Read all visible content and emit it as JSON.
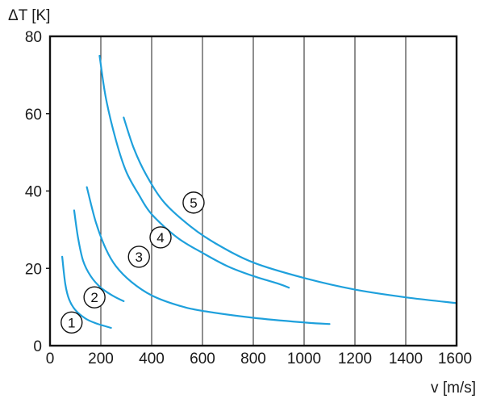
{
  "chart_data": {
    "type": "line",
    "title": "",
    "xlabel": "v [m/s]",
    "ylabel": "ΔT [K]",
    "xlim": [
      0,
      1600
    ],
    "ylim": [
      0,
      80
    ],
    "x_ticks": [
      0,
      200,
      400,
      600,
      800,
      1000,
      1200,
      1400,
      1600
    ],
    "y_ticks": [
      0,
      20,
      40,
      60,
      80
    ],
    "grid": "vertical lines only",
    "legend": "none",
    "colors": {
      "curve": "#1ea0dc",
      "grid": "#333333",
      "frame": "#111111"
    },
    "series": [
      {
        "label": "1",
        "points": [
          [
            48,
            23
          ],
          [
            60,
            16
          ],
          [
            75,
            12
          ],
          [
            100,
            9.2
          ],
          [
            140,
            7
          ],
          [
            180,
            5.8
          ],
          [
            240,
            4.6
          ]
        ]
      },
      {
        "label": "2",
        "points": [
          [
            95,
            35
          ],
          [
            110,
            28
          ],
          [
            130,
            22
          ],
          [
            160,
            18
          ],
          [
            200,
            15
          ],
          [
            250,
            12.8
          ],
          [
            290,
            11.5
          ]
        ]
      },
      {
        "label": "3",
        "points": [
          [
            145,
            41
          ],
          [
            180,
            32
          ],
          [
            220,
            25
          ],
          [
            260,
            20.5
          ],
          [
            320,
            16.5
          ],
          [
            400,
            13
          ],
          [
            500,
            10.5
          ],
          [
            600,
            9
          ],
          [
            800,
            7.2
          ],
          [
            1000,
            6
          ],
          [
            1100,
            5.6
          ]
        ]
      },
      {
        "label": "4",
        "points": [
          [
            195,
            75
          ],
          [
            220,
            64
          ],
          [
            260,
            53
          ],
          [
            300,
            45
          ],
          [
            350,
            39
          ],
          [
            400,
            34
          ],
          [
            500,
            28
          ],
          [
            600,
            24
          ],
          [
            700,
            20.5
          ],
          [
            800,
            18
          ],
          [
            900,
            16
          ],
          [
            940,
            15
          ]
        ]
      },
      {
        "label": "5",
        "points": [
          [
            290,
            59
          ],
          [
            330,
            51
          ],
          [
            380,
            44
          ],
          [
            450,
            37
          ],
          [
            550,
            31
          ],
          [
            650,
            26.5
          ],
          [
            800,
            21.5
          ],
          [
            1000,
            17.5
          ],
          [
            1200,
            14.5
          ],
          [
            1400,
            12.5
          ],
          [
            1600,
            11
          ]
        ]
      }
    ],
    "annotations": [
      {
        "text": "1",
        "x": 85,
        "y": 6
      },
      {
        "text": "2",
        "x": 175,
        "y": 12.5
      },
      {
        "text": "3",
        "x": 350,
        "y": 23
      },
      {
        "text": "4",
        "x": 435,
        "y": 28
      },
      {
        "text": "5",
        "x": 565,
        "y": 37
      }
    ]
  }
}
